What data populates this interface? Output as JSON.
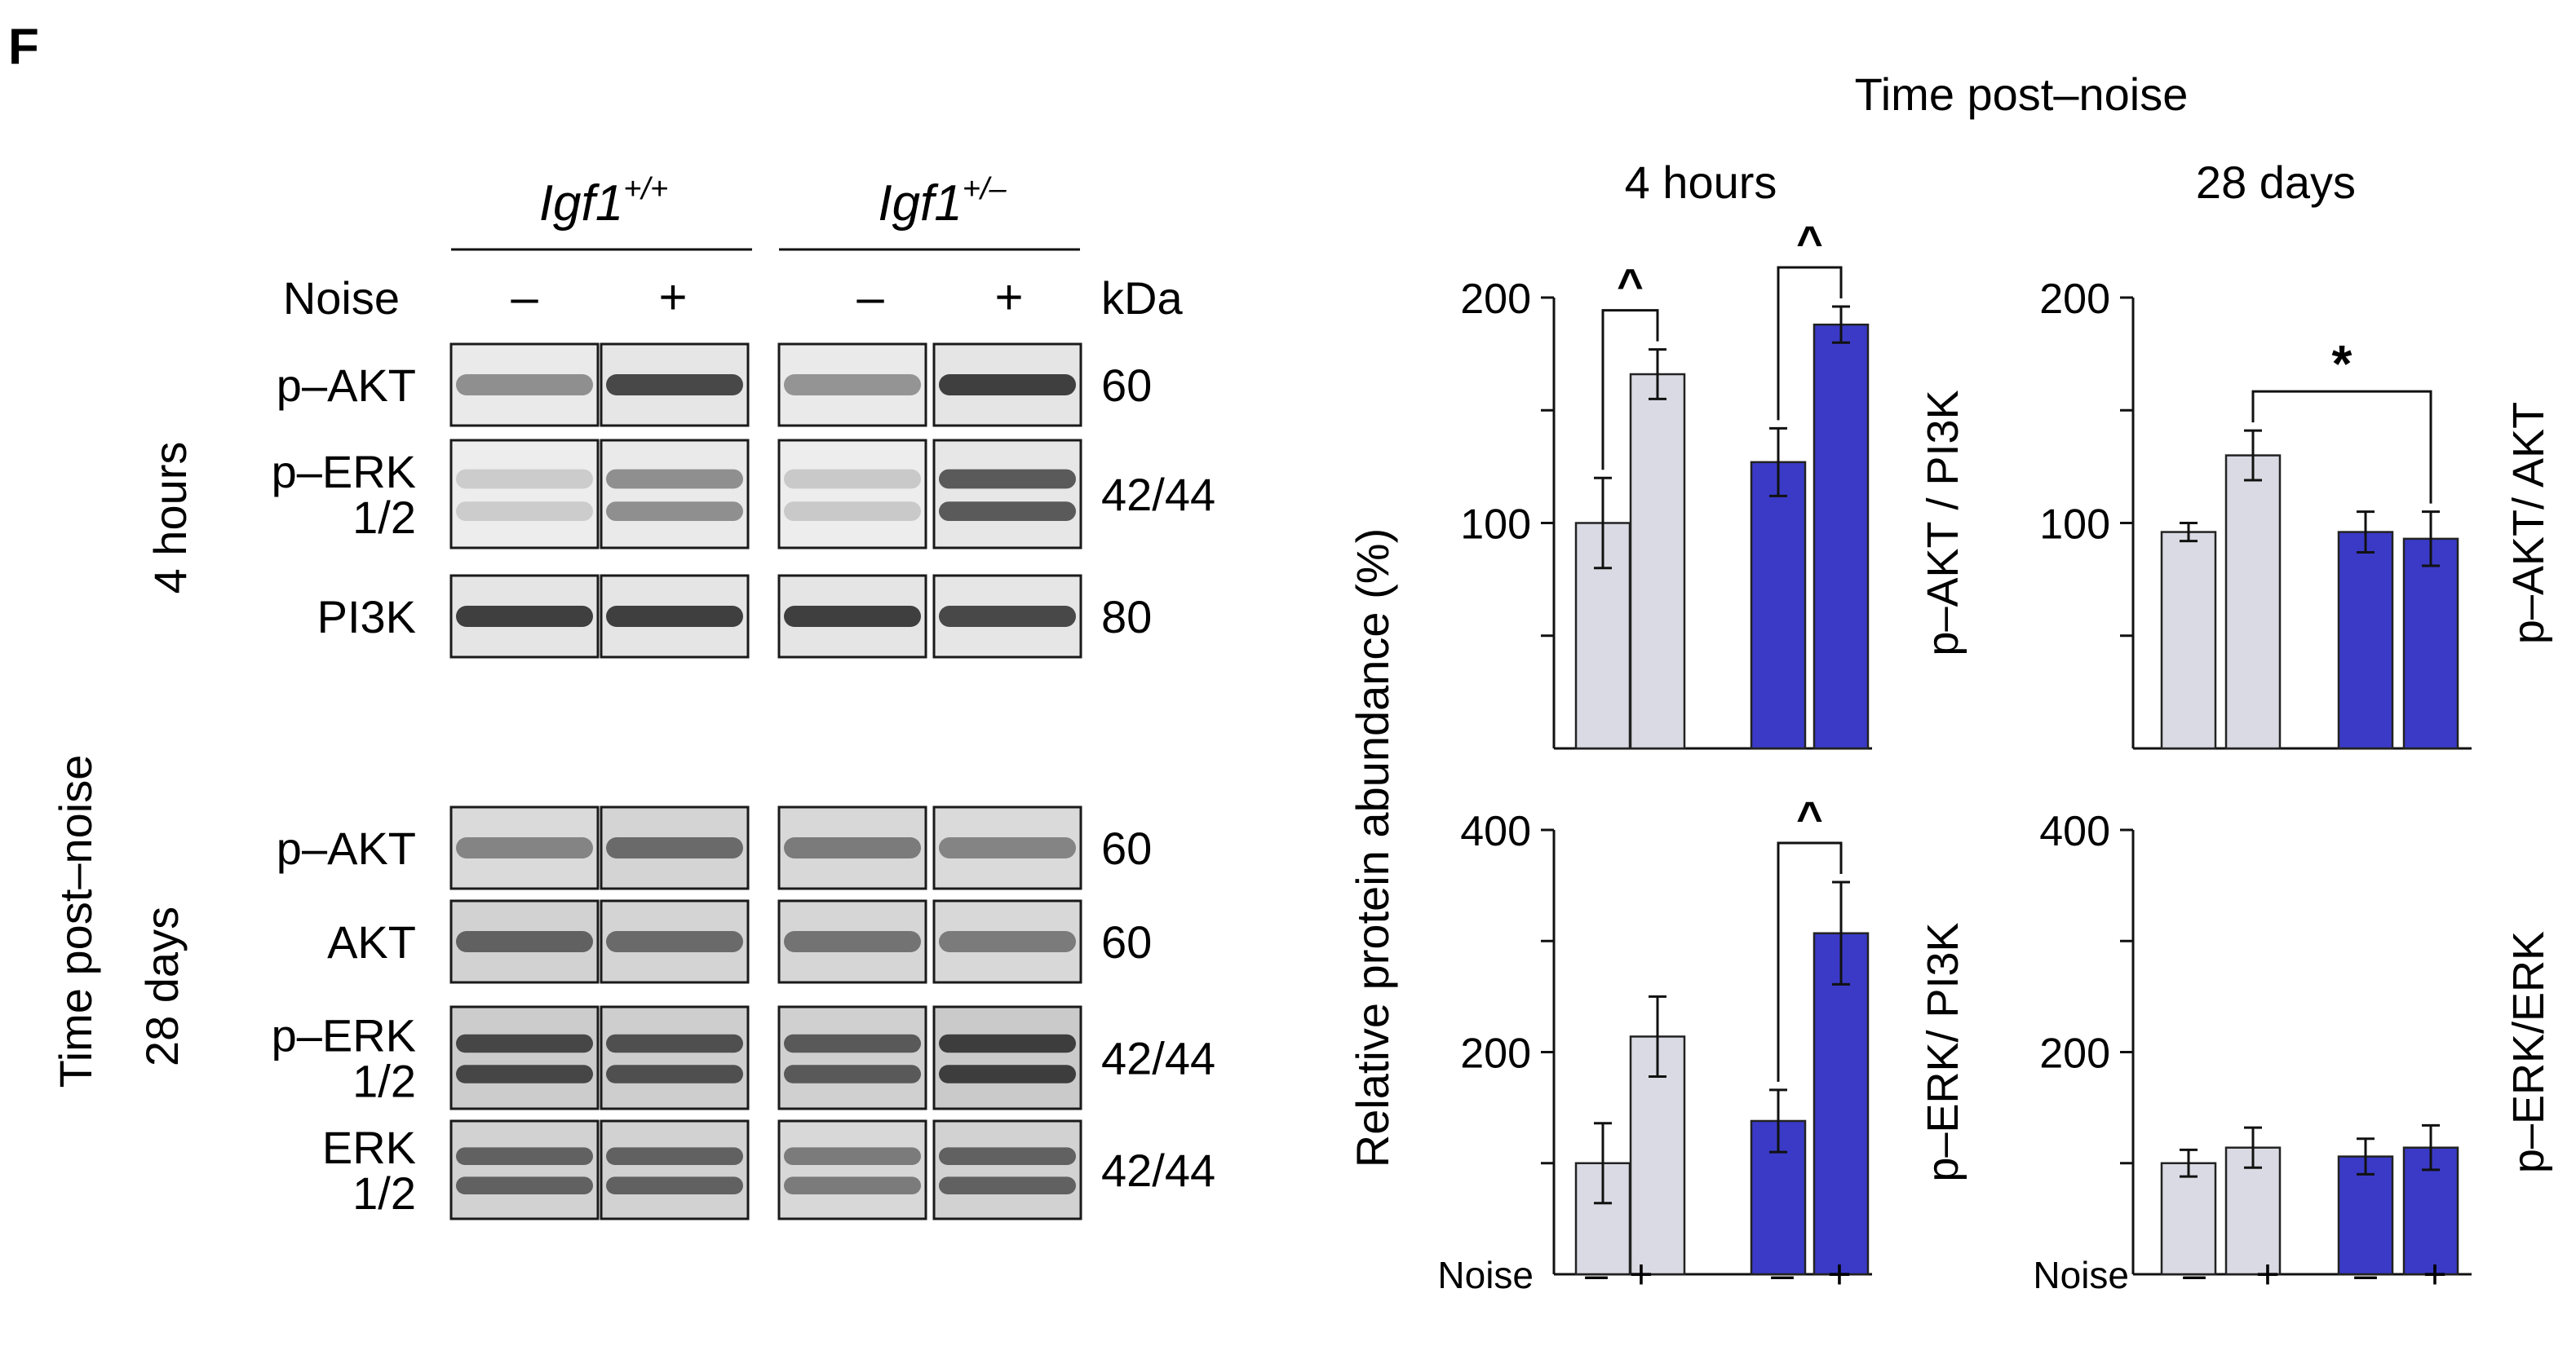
{
  "panel_letter": "F",
  "colors": {
    "wt_fill": "#d9dae3",
    "het_fill": "#3a3ac7",
    "bar_stroke": "#222222",
    "axis": "#111111",
    "text": "#111111"
  },
  "blots": {
    "genotypes": [
      {
        "base": "Igf1",
        "sup": "+/+"
      },
      {
        "base": "Igf1",
        "sup": "+/–"
      }
    ],
    "noise_label": "Noise",
    "noise_signs": [
      "–",
      "+",
      "–",
      "+"
    ],
    "kda_label": "kDa",
    "side_label": "Time post–noise",
    "time_4h": "4 hours",
    "time_28d": "28 days",
    "rows_4h": [
      {
        "label": [
          "p–AKT"
        ],
        "kda": "60",
        "intensity": [
          0.45,
          0.85,
          0.42,
          0.9
        ]
      },
      {
        "label": [
          "p–ERK",
          "1/2"
        ],
        "kda": "42/44",
        "intensity": [
          0.1,
          0.45,
          0.12,
          0.75
        ]
      },
      {
        "label": [
          "PI3K"
        ],
        "kda": "80",
        "intensity": [
          0.9,
          0.9,
          0.9,
          0.85
        ]
      }
    ],
    "rows_28d": [
      {
        "label": [
          "p–AKT"
        ],
        "kda": "60",
        "intensity": [
          0.5,
          0.65,
          0.55,
          0.5
        ]
      },
      {
        "label": [
          "AKT"
        ],
        "kda": "60",
        "intensity": [
          0.7,
          0.65,
          0.6,
          0.55
        ]
      },
      {
        "label": [
          "p–ERK",
          "1/2"
        ],
        "kda": "42/44",
        "intensity": [
          0.85,
          0.8,
          0.75,
          0.9
        ]
      },
      {
        "label": [
          "ERK",
          "1/2"
        ],
        "kda": "42/44",
        "intensity": [
          0.7,
          0.7,
          0.55,
          0.7
        ]
      }
    ]
  },
  "charts_header": {
    "title": "Time post–noise",
    "col_4h": "4 hours",
    "col_28d": "28 days",
    "shared_ylabel": "Relative protein abundance (%)",
    "noise_label": "Noise",
    "noise_signs": [
      "–",
      "+",
      "–",
      "+"
    ]
  },
  "chart_data": [
    {
      "type": "bar",
      "id": "4h-pakt-pi3k",
      "title": "4 hours",
      "ylabel": "p–AKT / PI3K",
      "ylim": [
        0,
        200
      ],
      "yticks": [
        100,
        200
      ],
      "minor_ticks": [
        50,
        150
      ],
      "categories": [
        "Igf1+/+ –",
        "Igf1+/+ +",
        "Igf1+/– –",
        "Igf1+/– +"
      ],
      "values": [
        100,
        166,
        127,
        188
      ],
      "errors": [
        20,
        11,
        15,
        8
      ],
      "groups": [
        "wt",
        "wt",
        "het",
        "het"
      ],
      "annotations": [
        {
          "label": "^",
          "from": 0,
          "to": 1
        },
        {
          "label": "^",
          "from": 2,
          "to": 3
        }
      ]
    },
    {
      "type": "bar",
      "id": "28d-pakt-akt",
      "title": "28 days",
      "ylabel": "p–AKT/ AKT",
      "ylim": [
        0,
        200
      ],
      "yticks": [
        100,
        200
      ],
      "minor_ticks": [
        50,
        150
      ],
      "categories": [
        "Igf1+/+ –",
        "Igf1+/+ +",
        "Igf1+/– –",
        "Igf1+/– +"
      ],
      "values": [
        96,
        130,
        96,
        93
      ],
      "errors": [
        4,
        11,
        9,
        12
      ],
      "groups": [
        "wt",
        "wt",
        "het",
        "het"
      ],
      "annotations": [
        {
          "label": "*",
          "from": 1,
          "to": 3
        }
      ]
    },
    {
      "type": "bar",
      "id": "4h-perk-pi3k",
      "title": "4 hours",
      "ylabel": "p–ERK/ PI3K",
      "ylim": [
        0,
        400
      ],
      "yticks": [
        200,
        400
      ],
      "minor_ticks": [
        100,
        300
      ],
      "categories": [
        "Igf1+/+ –",
        "Igf1+/+ +",
        "Igf1+/– –",
        "Igf1+/– +"
      ],
      "values": [
        100,
        214,
        138,
        307
      ],
      "errors": [
        36,
        36,
        28,
        46
      ],
      "groups": [
        "wt",
        "wt",
        "het",
        "het"
      ],
      "annotations": [
        {
          "label": "^",
          "from": 2,
          "to": 3
        }
      ]
    },
    {
      "type": "bar",
      "id": "28d-perk-erk",
      "title": "28 days",
      "ylabel": "p–ERK/ERK",
      "ylim": [
        0,
        400
      ],
      "yticks": [
        200,
        400
      ],
      "minor_ticks": [
        100,
        300
      ],
      "categories": [
        "Igf1+/+ –",
        "Igf1+/+ +",
        "Igf1+/– –",
        "Igf1+/– +"
      ],
      "values": [
        100,
        114,
        106,
        114
      ],
      "errors": [
        12,
        18,
        16,
        20
      ],
      "groups": [
        "wt",
        "wt",
        "het",
        "het"
      ],
      "annotations": []
    }
  ]
}
